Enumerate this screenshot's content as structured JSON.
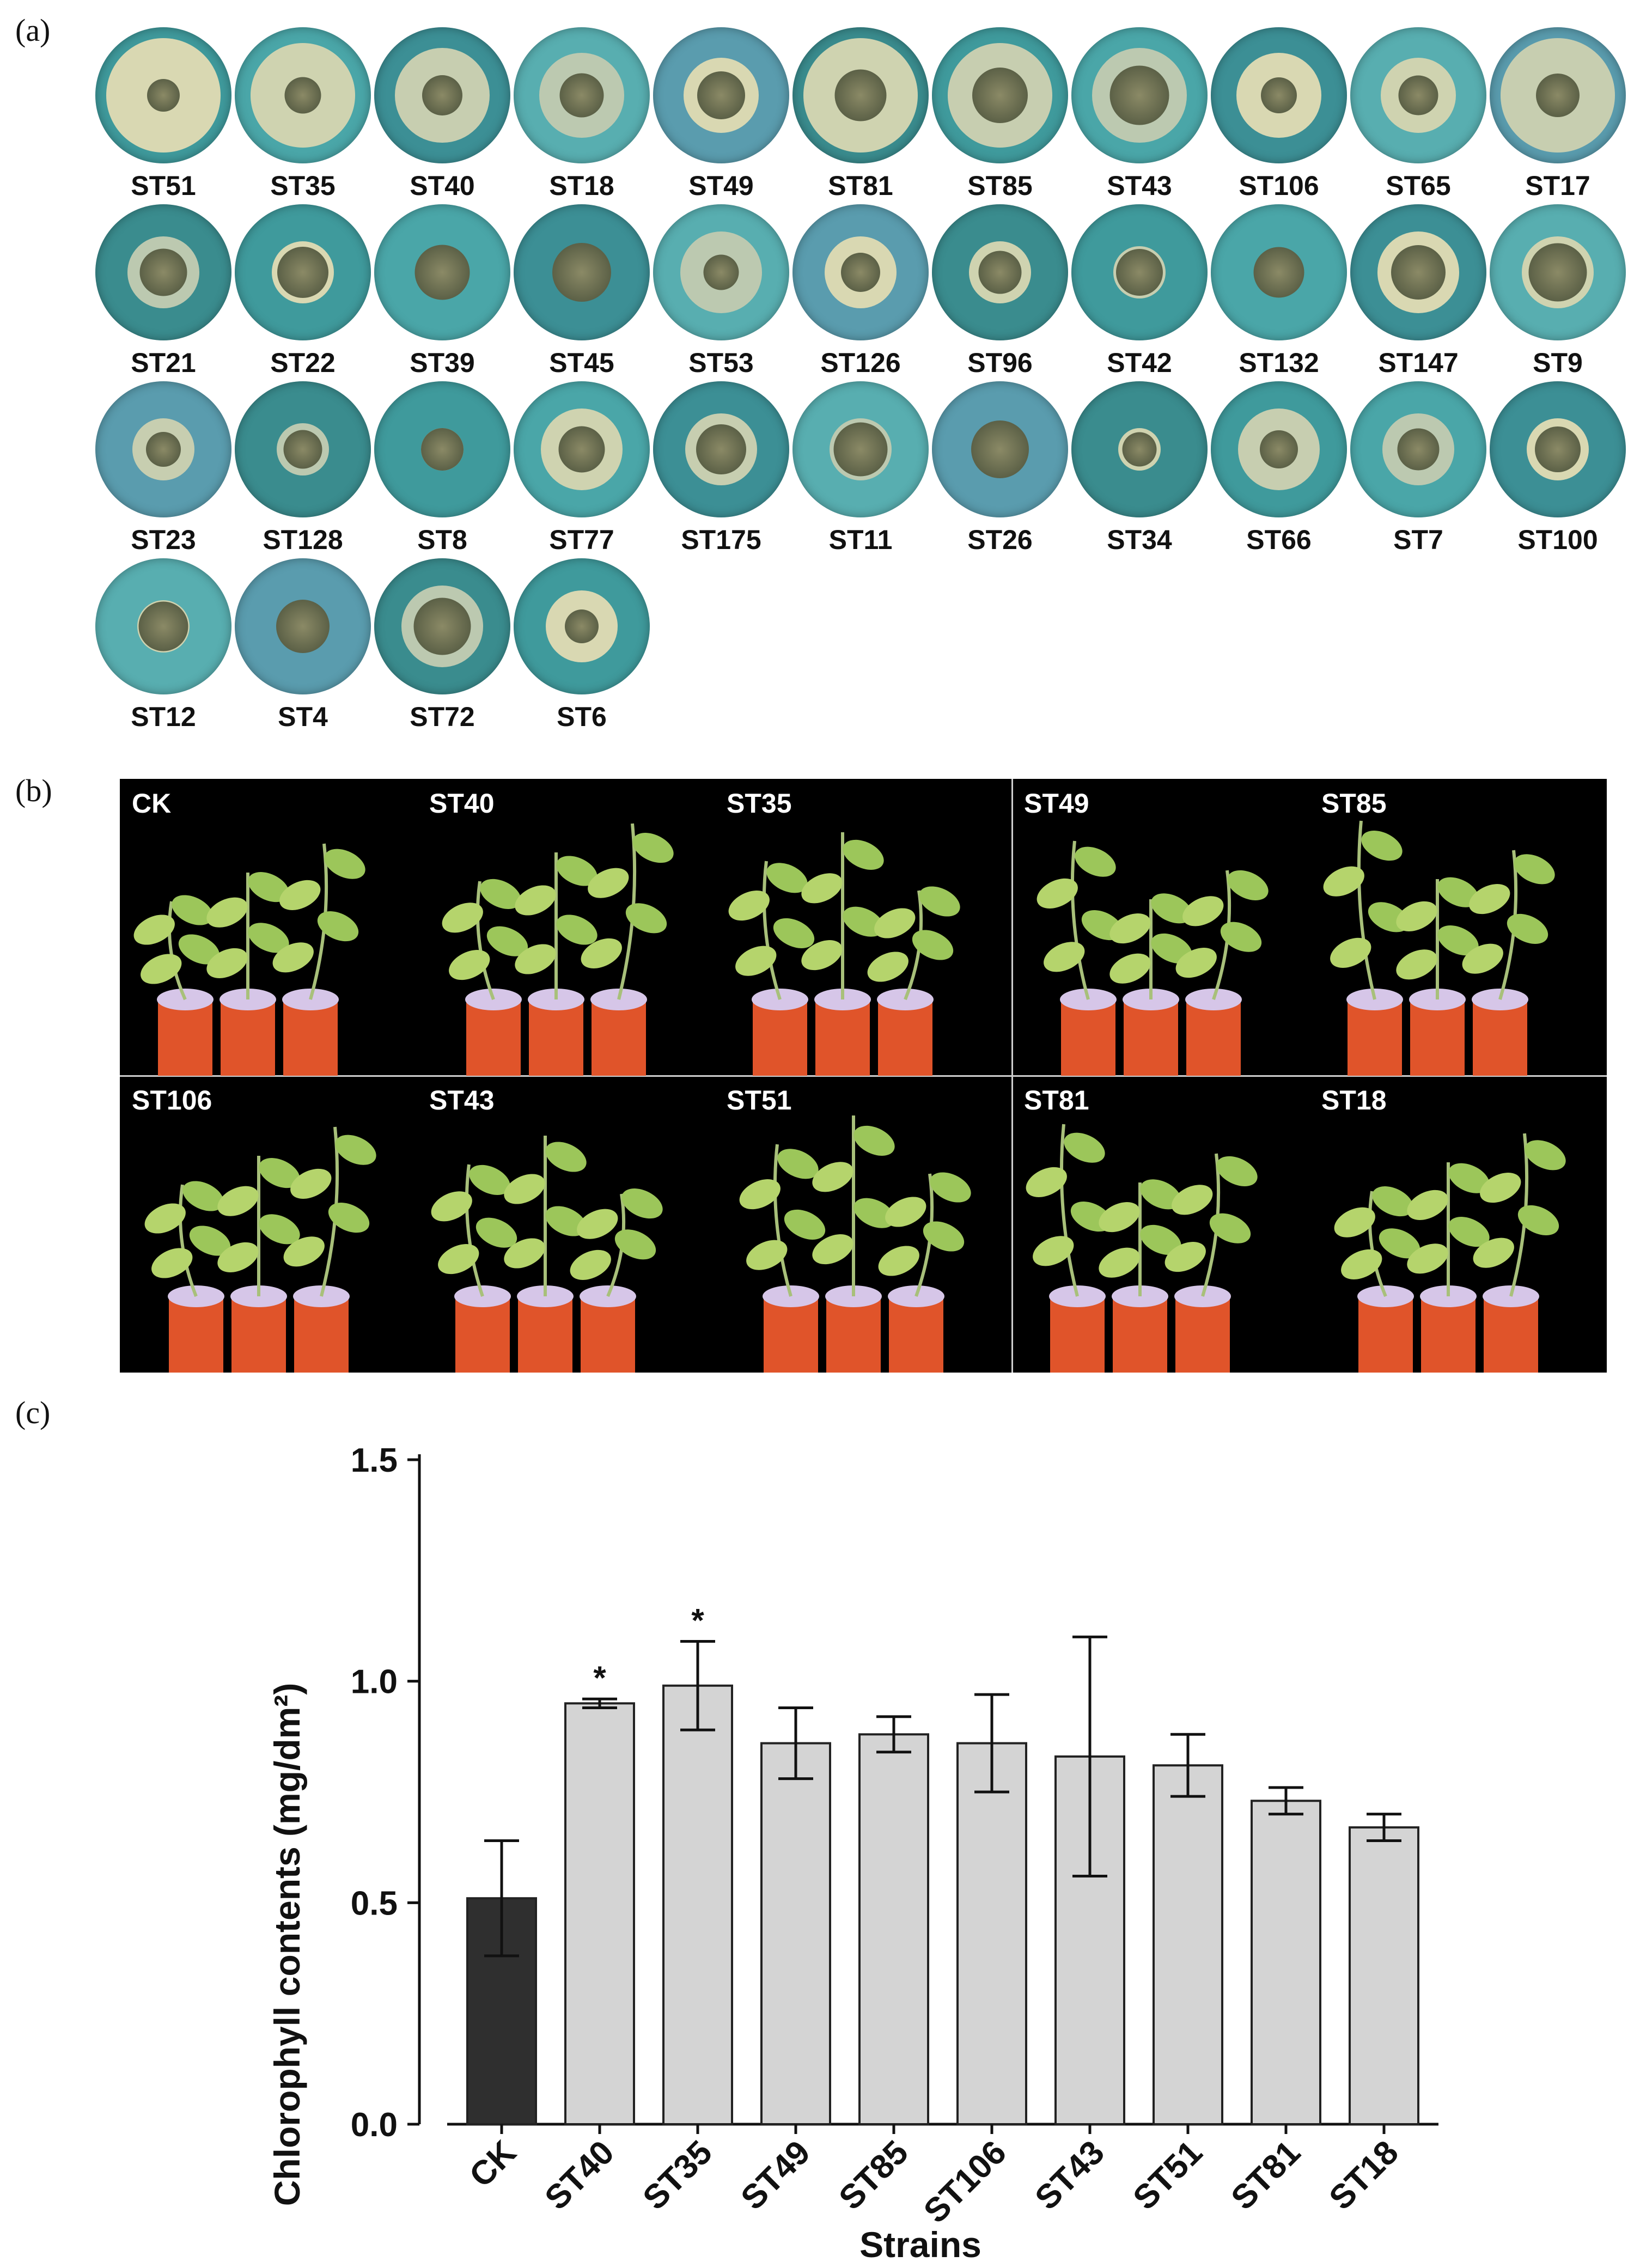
{
  "panels": {
    "a_label": "(a)",
    "b_label": "(b)",
    "c_label": "(c)"
  },
  "panel_a": {
    "rows": [
      [
        "ST51",
        "ST35",
        "ST40",
        "ST18",
        "ST49",
        "ST81",
        "ST85",
        "ST43",
        "ST106",
        "ST65",
        "ST17"
      ],
      [
        "ST21",
        "ST22",
        "ST39",
        "ST45",
        "ST53",
        "ST126",
        "ST96",
        "ST42",
        "ST132",
        "ST147",
        "ST9"
      ],
      [
        "ST23",
        "ST128",
        "ST8",
        "ST77",
        "ST175",
        "ST11",
        "ST26",
        "ST34",
        "ST66",
        "ST7",
        "ST100"
      ],
      [
        "ST12",
        "ST4",
        "ST72",
        "ST6"
      ]
    ]
  },
  "panel_b": {
    "labels": [
      "CK",
      "ST40",
      "ST35",
      "ST49",
      "ST85",
      "ST106",
      "ST43",
      "ST51",
      "ST81",
      "ST18"
    ]
  },
  "chart_data": {
    "type": "bar",
    "categories": [
      "CK",
      "ST40",
      "ST35",
      "ST49",
      "ST85",
      "ST106",
      "ST43",
      "ST51",
      "ST81",
      "ST18"
    ],
    "values": [
      0.51,
      0.95,
      0.99,
      0.86,
      0.88,
      0.86,
      0.83,
      0.81,
      0.73,
      0.67
    ],
    "errors": [
      0.13,
      0.01,
      0.1,
      0.08,
      0.04,
      0.11,
      0.27,
      0.07,
      0.03,
      0.03
    ],
    "significance": [
      "",
      "*",
      "*",
      "",
      "",
      "",
      "",
      "",
      "",
      ""
    ],
    "bar_colors": [
      "#2f2f2f",
      "#d4d4d4",
      "#d4d4d4",
      "#d4d4d4",
      "#d4d4d4",
      "#d4d4d4",
      "#d4d4d4",
      "#d4d4d4",
      "#d4d4d4",
      "#d4d4d4"
    ],
    "xlabel": "Strains",
    "ylabel": "Chlorophyll contents (mg/dm²)",
    "ylim": [
      0,
      1.5
    ],
    "yticks": [
      "0.0",
      "0.5",
      "1.0",
      "1.5"
    ],
    "ytick_values": [
      0,
      0.5,
      1.0,
      1.5
    ]
  }
}
